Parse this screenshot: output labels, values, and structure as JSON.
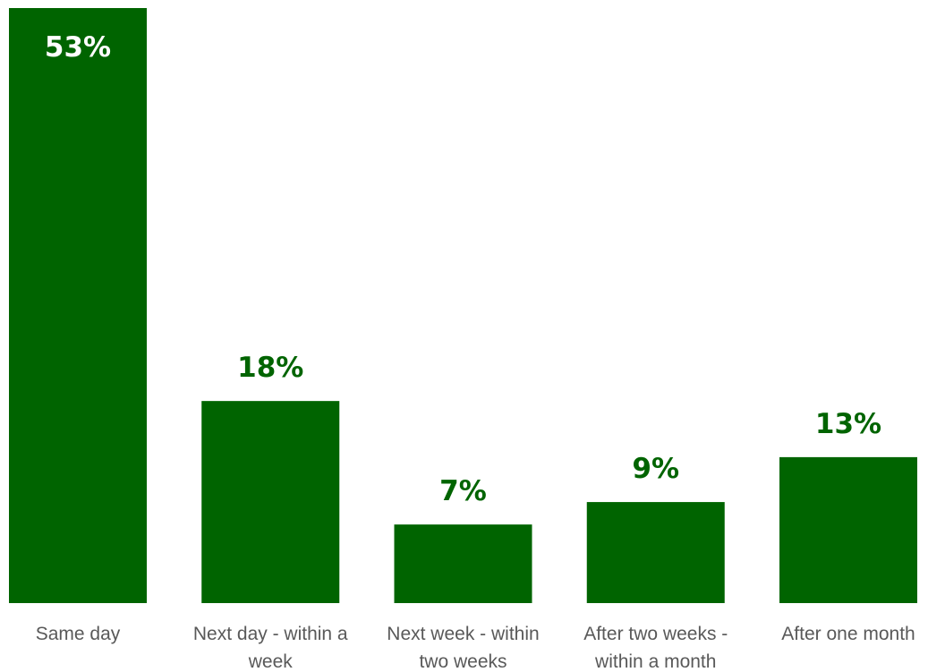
{
  "chart_data": {
    "type": "bar",
    "categories": [
      "Same day",
      "Next day - within a week",
      "Next week - within two weeks",
      "After two weeks - within a month",
      "After one month"
    ],
    "category_label_lines": [
      [
        "Same day"
      ],
      [
        "Next day - within a",
        "week"
      ],
      [
        "Next week - within",
        "two weeks"
      ],
      [
        "After two weeks -",
        "within a month"
      ],
      [
        "After one month"
      ]
    ],
    "values": [
      53,
      18,
      7,
      9,
      13
    ],
    "value_labels": [
      "53%",
      "18%",
      "7%",
      "9%",
      "13%"
    ],
    "unit": "%",
    "title": "",
    "xlabel": "",
    "ylabel": "",
    "ylim": [
      0,
      53
    ],
    "grid": false,
    "legend": "none",
    "colors": {
      "bar": "#006400",
      "label_outside": "#006400",
      "label_inside": "#ffffff",
      "category_text": "#595959"
    }
  }
}
